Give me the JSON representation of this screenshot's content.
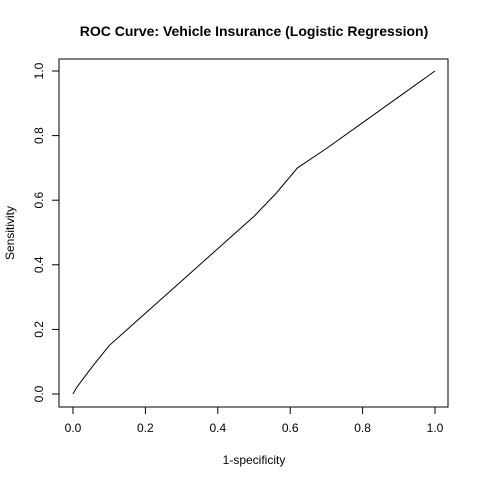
{
  "chart_data": {
    "type": "line",
    "title": "ROC Curve: Vehicle Insurance (Logistic Regression)",
    "xlabel": "1-specificity",
    "ylabel": "Sensitivity",
    "xlim": [
      0,
      1
    ],
    "ylim": [
      0,
      1
    ],
    "xticks": [
      "0.0",
      "0.2",
      "0.4",
      "0.6",
      "0.8",
      "1.0"
    ],
    "yticks": [
      "0.0",
      "0.2",
      "0.4",
      "0.6",
      "0.8",
      "1.0"
    ],
    "grid": false,
    "legend": "none",
    "series": [
      {
        "x": [
          0.0,
          0.01,
          0.03,
          0.05,
          0.1,
          0.2,
          0.3,
          0.4,
          0.5,
          0.56,
          0.62,
          0.7,
          0.8,
          0.9,
          1.0
        ],
        "y": [
          0.0,
          0.02,
          0.05,
          0.08,
          0.15,
          0.25,
          0.35,
          0.45,
          0.55,
          0.62,
          0.7,
          0.76,
          0.84,
          0.92,
          1.0
        ]
      }
    ]
  }
}
